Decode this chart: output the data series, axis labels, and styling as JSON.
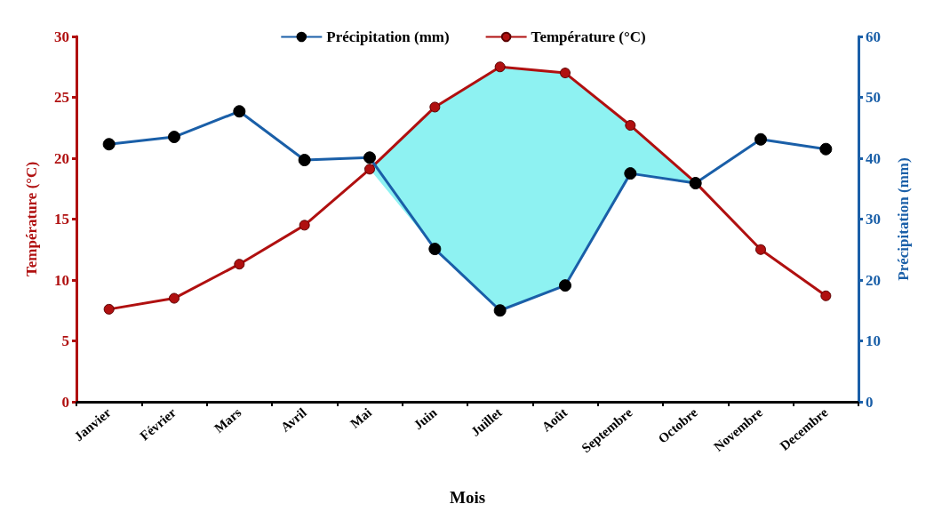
{
  "chart_data": {
    "type": "line",
    "xlabel": "Mois",
    "ylabel": "Température (°C)",
    "y2label": "Précipitation (mm)",
    "categories": [
      "Janvier",
      "Février",
      "Mars",
      "Avril",
      "Mai",
      "Juin",
      "Juillet",
      "Août",
      "Septembre",
      "Octobre",
      "Novembre",
      "Decembre"
    ],
    "series": [
      {
        "name": "Précipitation (mm)",
        "color": "#1a5fa8",
        "axis": "y2",
        "values": [
          42.3,
          43.5,
          47.7,
          39.7,
          40.1,
          25.1,
          15.0,
          19.1,
          37.5,
          35.9,
          43.1,
          41.5
        ]
      },
      {
        "name": "Température (°C)",
        "color": "#b01010",
        "axis": "y",
        "values": [
          7.6,
          8.5,
          11.3,
          14.5,
          19.1,
          24.2,
          27.5,
          27.0,
          22.7,
          18.0,
          12.5,
          8.7
        ],
        "lower": [
          null,
          null,
          null,
          null,
          19.1,
          12.6,
          7.5,
          9.6,
          18.8,
          18.0,
          null,
          null
        ],
        "upper": [
          null,
          null,
          null,
          null,
          19.1,
          24.2,
          27.5,
          27.0,
          22.7,
          18.0,
          null,
          null
        ]
      }
    ],
    "ylim": [
      0,
      30
    ],
    "yticks": [
      0,
      5,
      10,
      15,
      20,
      25,
      30
    ],
    "y2lim": [
      0,
      60
    ],
    "y2ticks": [
      0,
      10,
      20,
      30,
      40,
      50,
      60
    ],
    "legend": "top",
    "marker": "circle",
    "line_style": "solid",
    "grid": false
  }
}
